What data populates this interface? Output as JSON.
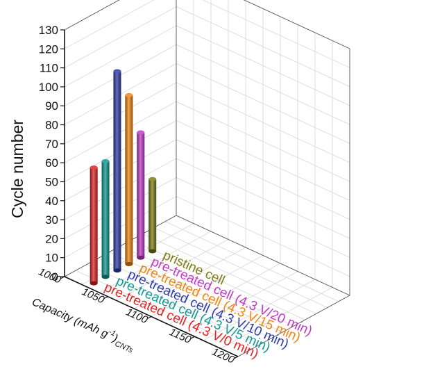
{
  "chart_data": {
    "type": "bar",
    "subtype": "3d-cylinder",
    "y_axis": {
      "label": "Cycle number",
      "range": [
        0,
        130
      ],
      "ticks": [
        "0",
        "10",
        "20",
        "30",
        "40",
        "50",
        "60",
        "70",
        "80",
        "90",
        "100",
        "110",
        "120",
        "130"
      ]
    },
    "x_axis": {
      "label_main": "Capacity (mAh g",
      "label_sup": "-1",
      "label_close": ")",
      "label_sub": "CNTs",
      "ticks": [
        "1000",
        "1050",
        "1100",
        "1150",
        "1200"
      ]
    },
    "grid": true,
    "series": [
      {
        "name": "pre-treated cell (4.3 V/0 min)",
        "value": 61,
        "color": "#e02424"
      },
      {
        "name": "pre-treated cell (4.3 V/5 min)",
        "value": 61,
        "color": "#139a95"
      },
      {
        "name": "pre-treated cell (4.3 V/10 min)",
        "value": 105,
        "color": "#2e3ea8"
      },
      {
        "name": "pre-treated cell (4.3 V/15 min)",
        "value": 89,
        "color": "#f0860f"
      },
      {
        "name": "pre-treated cell (4.3 V/20 min)",
        "value": 66,
        "color": "#c23ac6"
      },
      {
        "name": "pristine cell",
        "value": 38,
        "color": "#7d7d18"
      }
    ]
  }
}
